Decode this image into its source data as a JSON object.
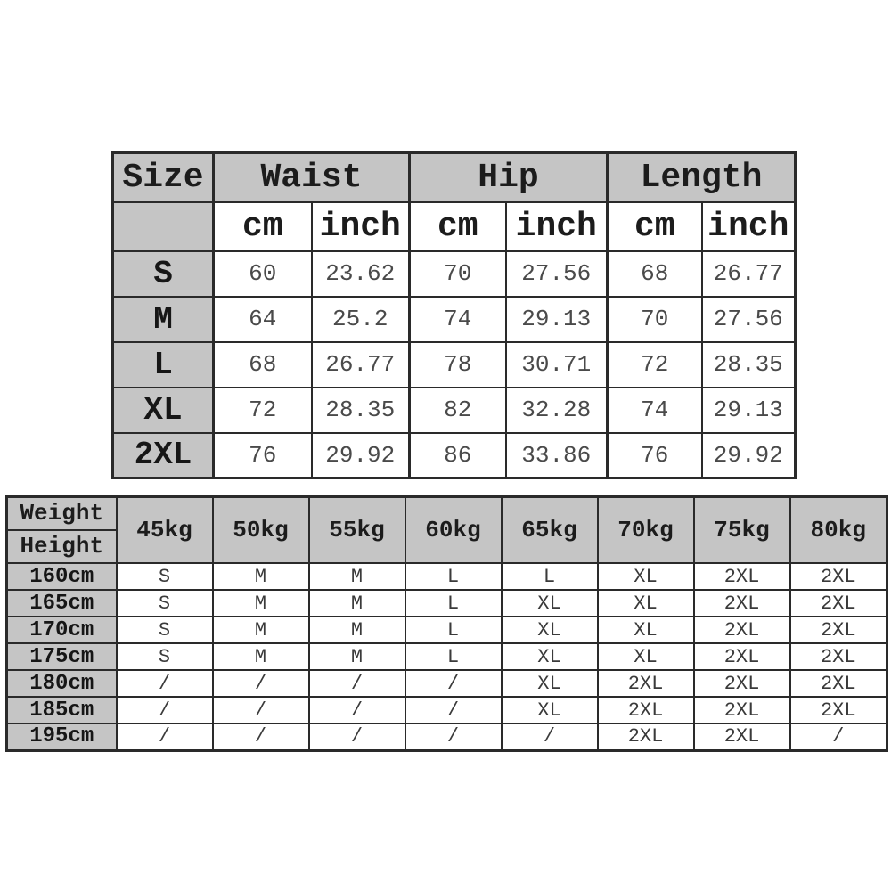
{
  "colors": {
    "header_fill": "#c5c5c5",
    "grid_line": "#2a2a2a",
    "data_text": "#4a4a4a",
    "page_background": "#ffffff"
  },
  "chart_data": [
    {
      "type": "table",
      "title": "Garment measurement chart",
      "header_groups": [
        "Size",
        "Waist",
        "Hip",
        "Length"
      ],
      "unit_labels": [
        "cm",
        "inch"
      ],
      "rows": [
        [
          "S",
          "60",
          "23.62",
          "70",
          "27.56",
          "68",
          "26.77"
        ],
        [
          "M",
          "64",
          "25.2",
          "74",
          "29.13",
          "70",
          "27.56"
        ],
        [
          "L",
          "68",
          "26.77",
          "78",
          "30.71",
          "72",
          "28.35"
        ],
        [
          "XL",
          "72",
          "28.35",
          "82",
          "32.28",
          "74",
          "29.13"
        ],
        [
          "2XL",
          "76",
          "29.92",
          "86",
          "33.86",
          "76",
          "29.92"
        ]
      ]
    },
    {
      "type": "table",
      "title": "Weight x Height size recommendation matrix",
      "corner_labels": [
        "Weight",
        "Height"
      ],
      "weight_columns": [
        "45kg",
        "50kg",
        "55kg",
        "60kg",
        "65kg",
        "70kg",
        "75kg",
        "80kg"
      ],
      "rows": [
        [
          "160cm",
          "S",
          "M",
          "M",
          "L",
          "L",
          "XL",
          "2XL",
          "2XL"
        ],
        [
          "165cm",
          "S",
          "M",
          "M",
          "L",
          "XL",
          "XL",
          "2XL",
          "2XL"
        ],
        [
          "170cm",
          "S",
          "M",
          "M",
          "L",
          "XL",
          "XL",
          "2XL",
          "2XL"
        ],
        [
          "175cm",
          "S",
          "M",
          "M",
          "L",
          "XL",
          "XL",
          "2XL",
          "2XL"
        ],
        [
          "180cm",
          "/",
          "/",
          "/",
          "/",
          "XL",
          "2XL",
          "2XL",
          "2XL"
        ],
        [
          "185cm",
          "/",
          "/",
          "/",
          "/",
          "XL",
          "2XL",
          "2XL",
          "2XL"
        ],
        [
          "195cm",
          "/",
          "/",
          "/",
          "/",
          "/",
          "2XL",
          "2XL",
          "/"
        ]
      ]
    }
  ]
}
